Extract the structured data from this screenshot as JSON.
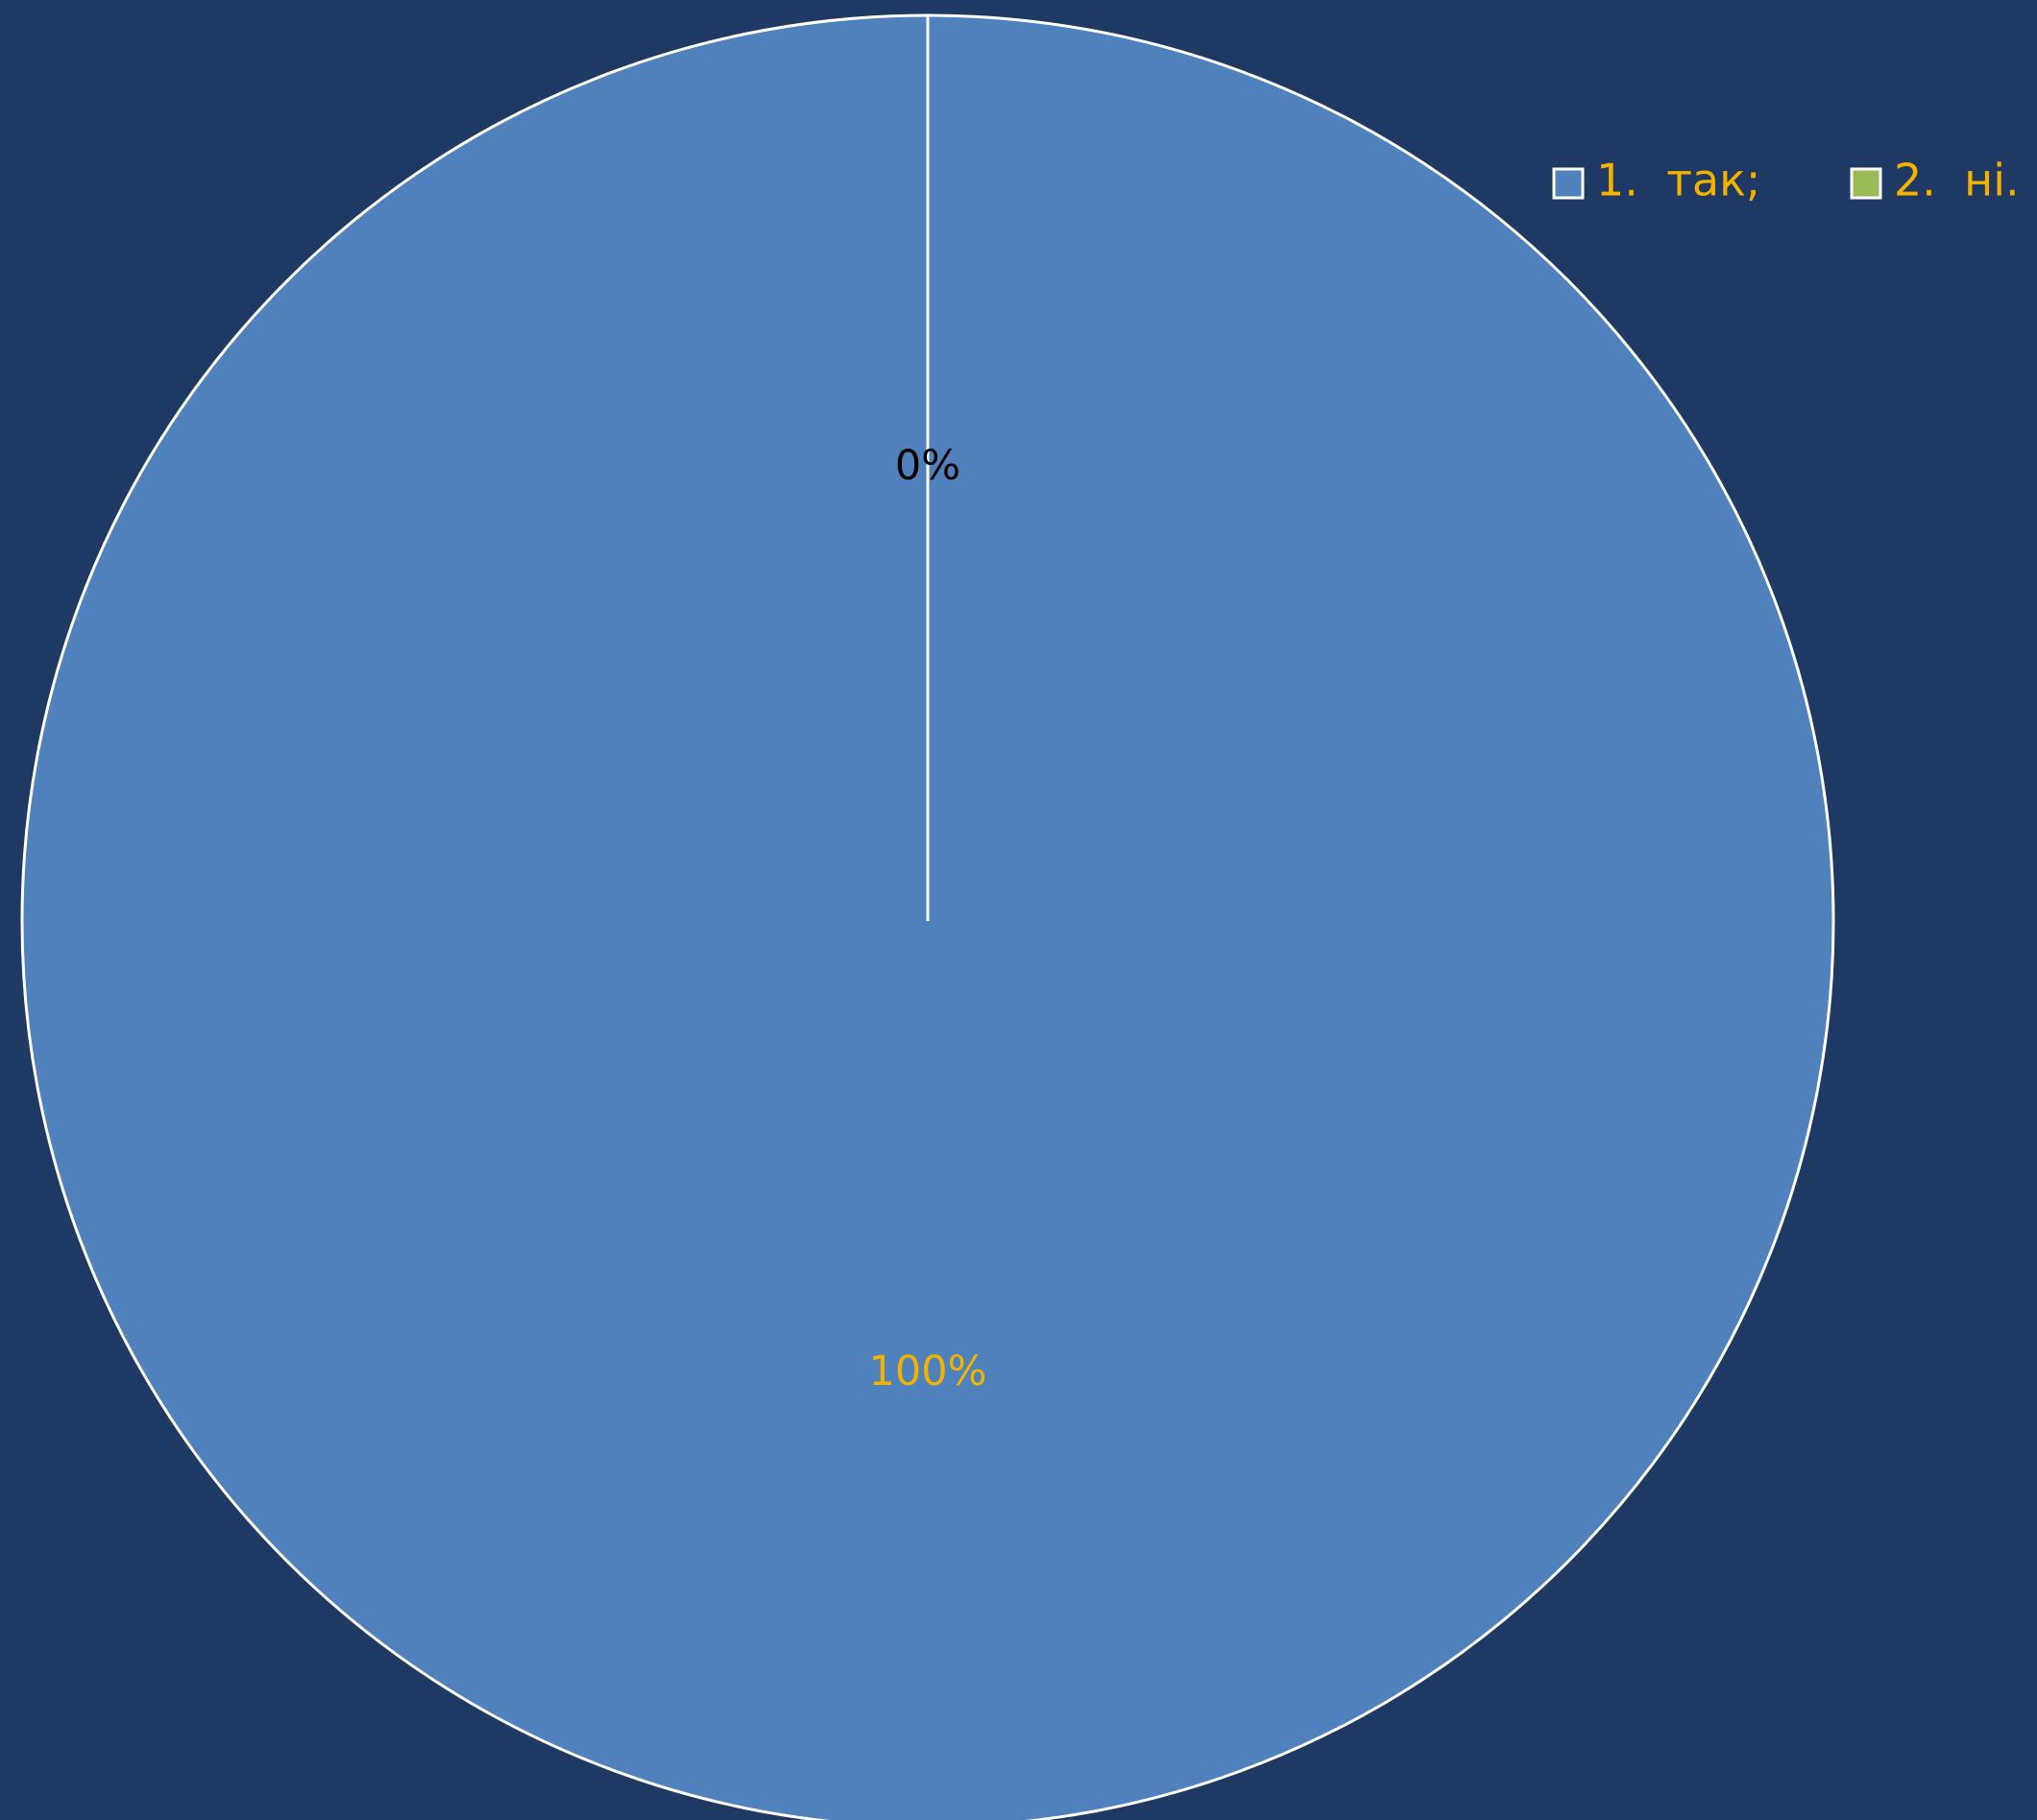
{
  "chart_data": {
    "type": "pie",
    "categories": [
      "1.  так;",
      "2.  ні."
    ],
    "values": [
      100,
      0
    ],
    "value_labels": [
      "100%",
      "0%"
    ],
    "colors": [
      "#4f81bd",
      "#9bbb59"
    ],
    "label_colors": [
      "#f0b400",
      "#000000"
    ],
    "legend": "top-right"
  }
}
